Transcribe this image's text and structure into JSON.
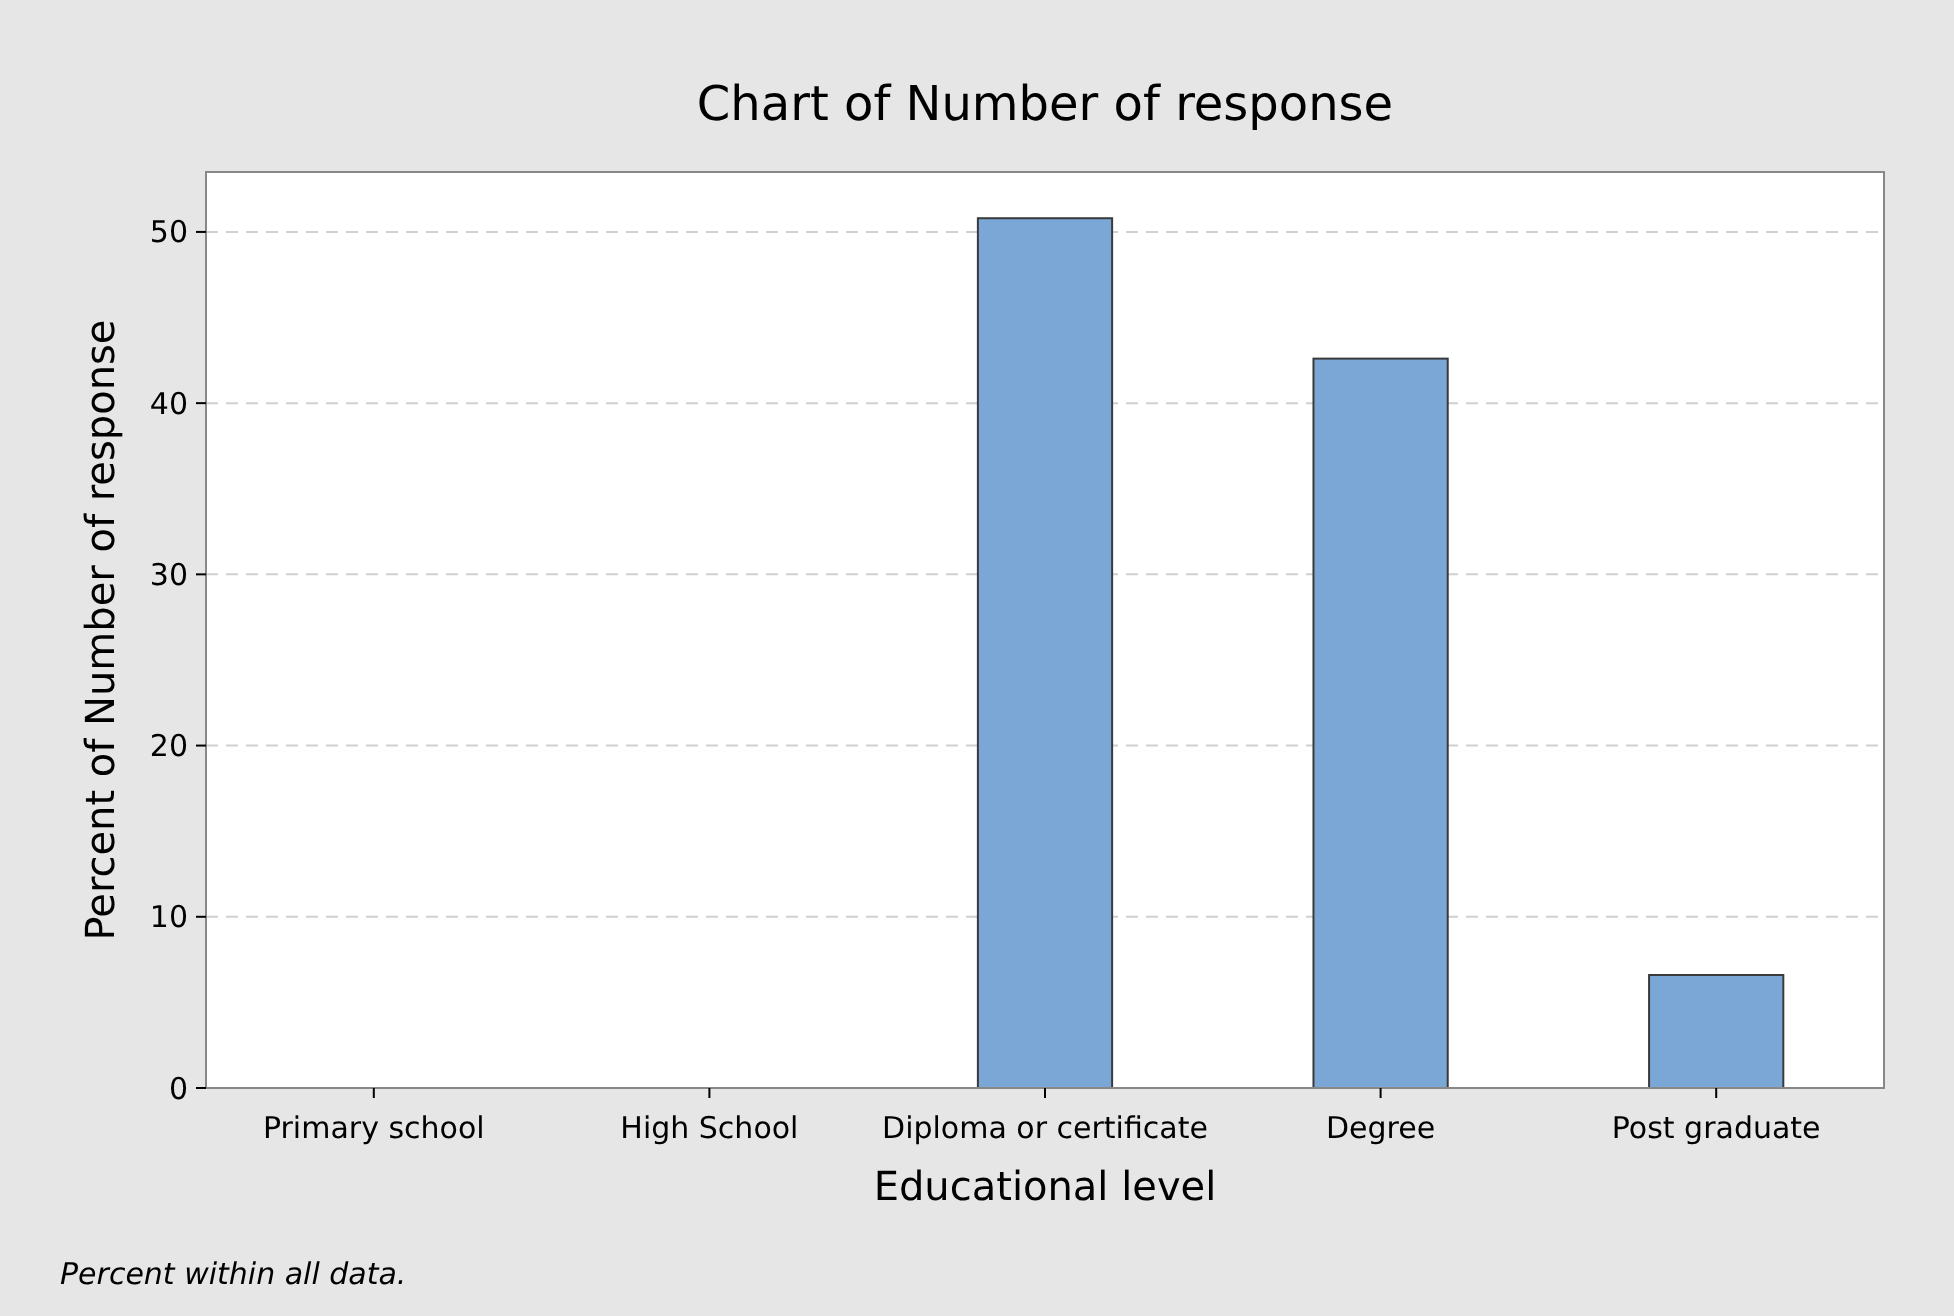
{
  "chart_data": {
    "type": "bar",
    "title": "Chart of Number of response",
    "xlabel": "Educational level",
    "ylabel": "Percent of Number of response",
    "categories": [
      "Primary school",
      "High School",
      "Diploma or certificate",
      "Degree",
      "Post graduate"
    ],
    "values": [
      0,
      0,
      50.8,
      42.6,
      6.6
    ],
    "color": "#7ba7d7",
    "ylim": [
      0,
      53.5
    ],
    "yticks": [
      0,
      10,
      20,
      30,
      40,
      50
    ],
    "grid": "y",
    "annotations": [
      "Percent within all data."
    ]
  }
}
